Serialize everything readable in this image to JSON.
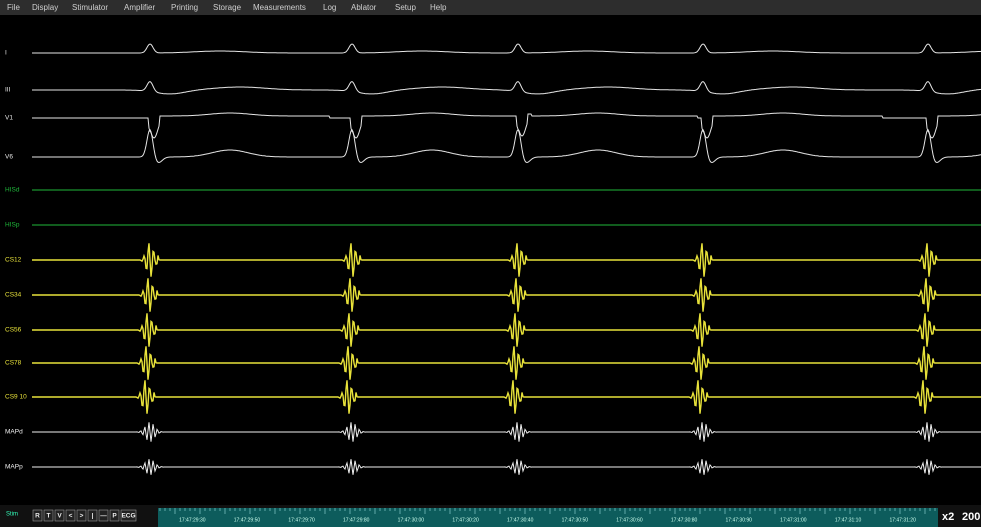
{
  "menu": {
    "items": [
      "File",
      "Display",
      "Stimulator",
      "Amplifier",
      "Printing",
      "Storage",
      "Measurements",
      "Log",
      "Ablator",
      "Setup",
      "Help"
    ]
  },
  "channels": [
    {
      "label": "I",
      "color": "#e6e6e6"
    },
    {
      "label": "III",
      "color": "#e6e6e6"
    },
    {
      "label": "V1",
      "color": "#e6e6e6"
    },
    {
      "label": "V6",
      "color": "#e6e6e6"
    },
    {
      "label": "HISd",
      "color": "#1fb83a"
    },
    {
      "label": "HISp",
      "color": "#1fb83a"
    },
    {
      "label": "CS12",
      "color": "#e8e23a"
    },
    {
      "label": "CS34",
      "color": "#e8e23a"
    },
    {
      "label": "CS56",
      "color": "#e8e23a"
    },
    {
      "label": "CS78",
      "color": "#e8e23a"
    },
    {
      "label": "CS9 10",
      "color": "#e8e23a"
    },
    {
      "label": "MAPd",
      "color": "#f0f0f0"
    },
    {
      "label": "MAPp",
      "color": "#f0f0f0"
    }
  ],
  "toolbar": {
    "side": "Stim",
    "buttons": [
      "R",
      "T",
      "V",
      "<",
      ">",
      "|",
      "—",
      "P",
      "ECG"
    ]
  },
  "timeline": {
    "labels": [
      "17:47:29:30",
      "17:47:29:50",
      "17:47:29:70",
      "17:47:29:80",
      "17:47:30:00",
      "17:47:30:20",
      "17:47:30:40",
      "17:47:30:50",
      "17:47:30:60",
      "17:47:30:80",
      "17:47:30:90",
      "17:47:31:00",
      "17:47:31:10",
      "17:47:31:20"
    ]
  },
  "status": {
    "zoom": "x2",
    "speed": "200"
  }
}
